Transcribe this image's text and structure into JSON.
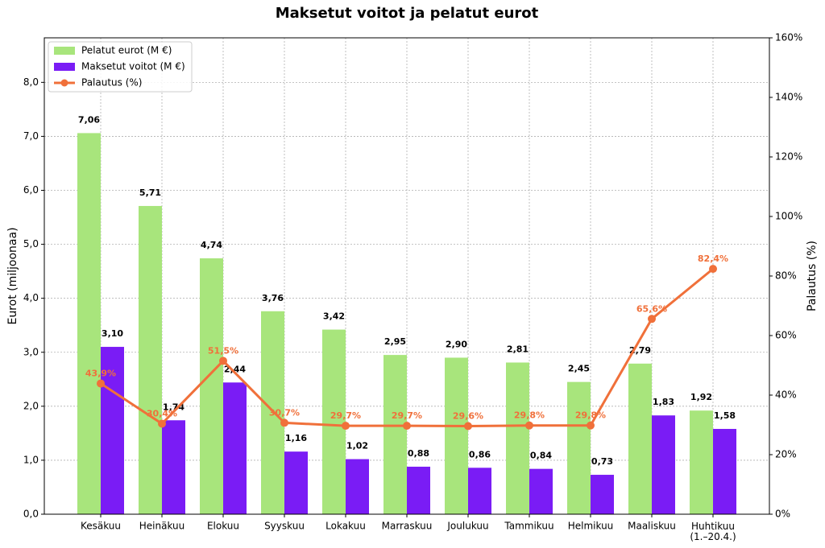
{
  "chart_data": {
    "type": "bar_line",
    "title": "Maksetut voitot ja pelatut eurot",
    "ylabel": "Eurot (miljoonaa)",
    "y2label": "Palautus (%)",
    "categories": [
      "Kesäkuu",
      "Heinäkuu",
      "Elokuu",
      "Syyskuu",
      "Lokakuu",
      "Marraskuu",
      "Joulukuu",
      "Tammikuu",
      "Helmikuu",
      "Maaliskuu",
      "Huhtikuu\n(1.–20.4.)"
    ],
    "series": [
      {
        "name": "Pelatut eurot (M €)",
        "type": "bar",
        "color": "#a8e57c",
        "values": [
          7.06,
          5.71,
          4.74,
          3.76,
          3.42,
          2.95,
          2.9,
          2.81,
          2.45,
          2.79,
          1.92
        ],
        "value_labels": [
          "7,06",
          "5,71",
          "4,74",
          "3,76",
          "3,42",
          "2,95",
          "2,90",
          "2,81",
          "2,45",
          "2,79",
          "1,92"
        ]
      },
      {
        "name": "Maksetut voitot (M €)",
        "type": "bar",
        "color": "#7a1cf5",
        "values": [
          3.1,
          1.74,
          2.44,
          1.16,
          1.02,
          0.88,
          0.86,
          0.84,
          0.73,
          1.83,
          1.58
        ],
        "value_labels": [
          "3,10",
          "1,74",
          "2,44",
          "1,16",
          "1,02",
          "0,88",
          "0,86",
          "0,84",
          "0,73",
          "1,83",
          "1,58"
        ]
      },
      {
        "name": "Palautus (%)",
        "type": "line",
        "axis": "y2",
        "color": "#f0703a",
        "values": [
          43.9,
          30.4,
          51.5,
          30.7,
          29.7,
          29.7,
          29.6,
          29.8,
          29.8,
          65.6,
          82.4
        ],
        "value_labels": [
          "43,9%",
          "30,4%",
          "51,5%",
          "30,7%",
          "29,7%",
          "29,7%",
          "29,6%",
          "29,8%",
          "29,8%",
          "65,6%",
          "82,4%"
        ]
      }
    ],
    "ylim": [
      0,
      8.825
    ],
    "yticks": [
      {
        "value": 0,
        "label": "0,0"
      },
      {
        "value": 1,
        "label": "1,0"
      },
      {
        "value": 2,
        "label": "2,0"
      },
      {
        "value": 3,
        "label": "3,0"
      },
      {
        "value": 4,
        "label": "4,0"
      },
      {
        "value": 5,
        "label": "5,0"
      },
      {
        "value": 6,
        "label": "6,0"
      },
      {
        "value": 7,
        "label": "7,0"
      },
      {
        "value": 8,
        "label": "8,0"
      }
    ],
    "y2lim": [
      0,
      160
    ],
    "y2ticks": [
      {
        "value": 0,
        "label": "0%"
      },
      {
        "value": 20,
        "label": "20%"
      },
      {
        "value": 40,
        "label": "40%"
      },
      {
        "value": 60,
        "label": "60%"
      },
      {
        "value": 80,
        "label": "80%"
      },
      {
        "value": 100,
        "label": "100%"
      },
      {
        "value": 120,
        "label": "120%"
      },
      {
        "value": 140,
        "label": "140%"
      },
      {
        "value": 160,
        "label": "160%"
      }
    ],
    "grid": true,
    "legend": "upper left"
  }
}
